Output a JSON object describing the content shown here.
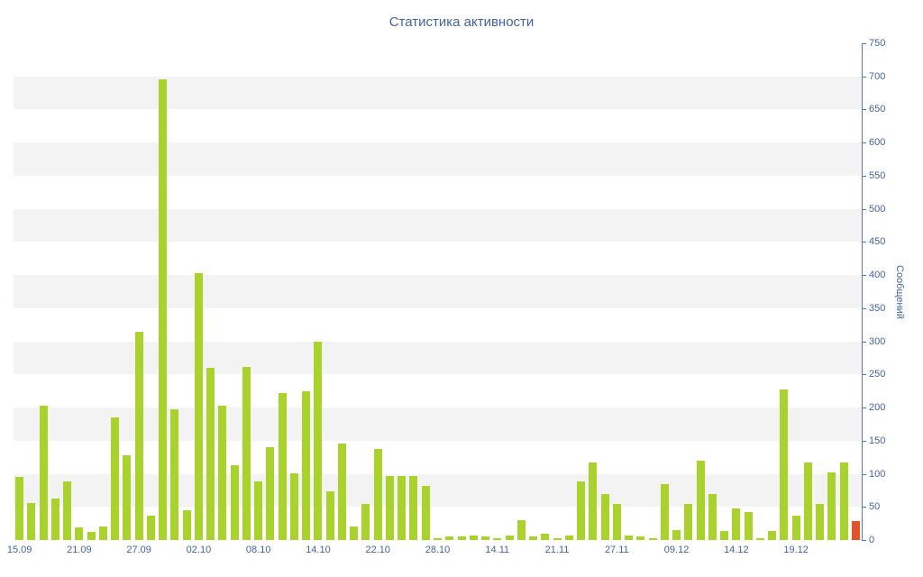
{
  "chart": {
    "title": "Статистика активности",
    "y_axis_title": "Сообщений",
    "colors": {
      "bar": "#a9d32c",
      "highlight_bar": "#e2512a",
      "text": "#44639e",
      "axis_line": "#5578ad",
      "band": "#f3f3f3",
      "background": "#ffffff"
    }
  },
  "chart_data": {
    "type": "bar",
    "title": "Статистика активности",
    "xlabel": "",
    "ylabel": "Сообщений",
    "ylim": [
      0,
      750
    ],
    "y_ticks": [
      0,
      50,
      100,
      150,
      200,
      250,
      300,
      350,
      400,
      450,
      500,
      550,
      600,
      650,
      700,
      750
    ],
    "grid_bands": [
      [
        50,
        100
      ],
      [
        150,
        200
      ],
      [
        250,
        300
      ],
      [
        350,
        400
      ],
      [
        450,
        500
      ],
      [
        550,
        600
      ],
      [
        650,
        700
      ]
    ],
    "legend": "none",
    "x_tick_labels": [
      "15.09",
      "21.09",
      "27.09",
      "02.10",
      "08.10",
      "14.10",
      "22.10",
      "28.10",
      "14.11",
      "21.11",
      "27.11",
      "09.12",
      "14.12",
      "19.12"
    ],
    "x_tick_indices": [
      0,
      5,
      10,
      15,
      20,
      25,
      30,
      35,
      40,
      45,
      50,
      55,
      60,
      65
    ],
    "values": [
      95,
      56,
      203,
      63,
      88,
      19,
      12,
      20,
      185,
      128,
      314,
      37,
      695,
      197,
      45,
      403,
      260,
      203,
      113,
      262,
      88,
      140,
      222,
      101,
      224,
      300,
      73,
      146,
      20,
      55,
      137,
      97,
      96,
      97,
      82,
      3,
      5,
      5,
      7,
      5,
      3,
      7,
      30,
      5,
      10,
      3,
      7,
      88,
      117,
      70,
      55,
      7,
      5,
      3,
      85,
      15,
      55,
      120,
      70,
      13,
      47,
      42,
      3,
      13,
      228,
      37,
      117,
      55,
      102,
      117,
      28
    ],
    "highlight_last_bar": true
  }
}
